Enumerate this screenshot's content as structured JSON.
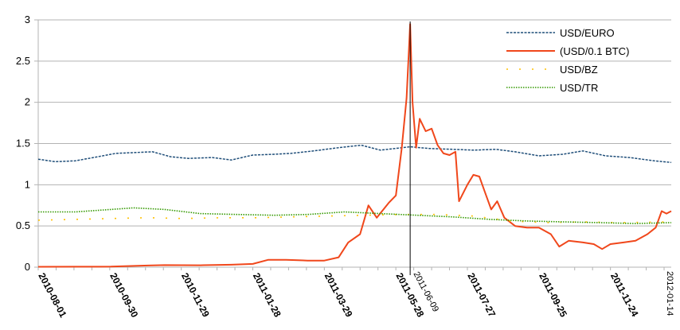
{
  "chart_data": {
    "type": "line",
    "title": "",
    "xlabel": "",
    "ylabel": "",
    "ylim": [
      0,
      3
    ],
    "yticks": [
      "0",
      "0.5",
      "1",
      "1.5",
      "2",
      "2.5",
      "3"
    ],
    "grid": "horizontal",
    "legend_position": "top-right",
    "xlim": [
      "2010-08-01",
      "2012-01-14"
    ],
    "xticks": [
      "2010-08-01",
      "2010-09-30",
      "2010-11-29",
      "2011-01-28",
      "2011-03-29",
      "2011-05-28",
      "2011-07-27",
      "2011-09-25",
      "2011-11-24"
    ],
    "end_label": "2012-01-14",
    "annotation": {
      "date": "2011-06-09",
      "label": "2011-06-09"
    },
    "series": [
      {
        "name": "USD/EURO",
        "color": "#1f4e79",
        "style": "dashed",
        "points": [
          [
            "2010-08-01",
            1.31
          ],
          [
            "2010-08-15",
            1.28
          ],
          [
            "2010-09-01",
            1.29
          ],
          [
            "2010-09-20",
            1.34
          ],
          [
            "2010-10-05",
            1.38
          ],
          [
            "2010-10-20",
            1.39
          ],
          [
            "2010-11-05",
            1.4
          ],
          [
            "2010-11-20",
            1.34
          ],
          [
            "2010-12-05",
            1.32
          ],
          [
            "2010-12-25",
            1.33
          ],
          [
            "2011-01-10",
            1.3
          ],
          [
            "2011-01-28",
            1.36
          ],
          [
            "2011-02-15",
            1.37
          ],
          [
            "2011-03-01",
            1.38
          ],
          [
            "2011-03-20",
            1.41
          ],
          [
            "2011-04-10",
            1.45
          ],
          [
            "2011-04-29",
            1.48
          ],
          [
            "2011-05-15",
            1.42
          ],
          [
            "2011-06-09",
            1.46
          ],
          [
            "2011-06-25",
            1.44
          ],
          [
            "2011-07-15",
            1.43
          ],
          [
            "2011-08-01",
            1.42
          ],
          [
            "2011-08-20",
            1.43
          ],
          [
            "2011-09-05",
            1.4
          ],
          [
            "2011-09-25",
            1.35
          ],
          [
            "2011-10-15",
            1.37
          ],
          [
            "2011-11-01",
            1.41
          ],
          [
            "2011-11-20",
            1.35
          ],
          [
            "2011-12-10",
            1.33
          ],
          [
            "2011-12-31",
            1.29
          ],
          [
            "2012-01-14",
            1.27
          ]
        ]
      },
      {
        "name": "(USD/0.1 BTC)",
        "color": "#f0471b",
        "style": "solid",
        "points": [
          [
            "2010-08-01",
            0.005
          ],
          [
            "2010-09-01",
            0.006
          ],
          [
            "2010-10-01",
            0.007
          ],
          [
            "2010-11-01",
            0.02
          ],
          [
            "2010-11-15",
            0.025
          ],
          [
            "2010-12-15",
            0.023
          ],
          [
            "2011-01-10",
            0.03
          ],
          [
            "2011-01-28",
            0.04
          ],
          [
            "2011-02-10",
            0.09
          ],
          [
            "2011-02-25",
            0.09
          ],
          [
            "2011-03-15",
            0.08
          ],
          [
            "2011-03-29",
            0.08
          ],
          [
            "2011-04-10",
            0.12
          ],
          [
            "2011-04-18",
            0.3
          ],
          [
            "2011-04-28",
            0.4
          ],
          [
            "2011-05-05",
            0.75
          ],
          [
            "2011-05-12",
            0.6
          ],
          [
            "2011-05-22",
            0.78
          ],
          [
            "2011-05-28",
            0.87
          ],
          [
            "2011-06-02",
            1.45
          ],
          [
            "2011-06-06",
            2.05
          ],
          [
            "2011-06-09",
            2.95
          ],
          [
            "2011-06-11",
            2.0
          ],
          [
            "2011-06-14",
            1.45
          ],
          [
            "2011-06-17",
            1.8
          ],
          [
            "2011-06-22",
            1.65
          ],
          [
            "2011-06-27",
            1.68
          ],
          [
            "2011-07-02",
            1.48
          ],
          [
            "2011-07-07",
            1.38
          ],
          [
            "2011-07-12",
            1.36
          ],
          [
            "2011-07-17",
            1.4
          ],
          [
            "2011-07-20",
            0.8
          ],
          [
            "2011-07-27",
            1.0
          ],
          [
            "2011-08-01",
            1.12
          ],
          [
            "2011-08-06",
            1.1
          ],
          [
            "2011-08-11",
            0.9
          ],
          [
            "2011-08-16",
            0.7
          ],
          [
            "2011-08-21",
            0.8
          ],
          [
            "2011-08-27",
            0.6
          ],
          [
            "2011-09-05",
            0.5
          ],
          [
            "2011-09-15",
            0.48
          ],
          [
            "2011-09-25",
            0.48
          ],
          [
            "2011-10-05",
            0.4
          ],
          [
            "2011-10-12",
            0.25
          ],
          [
            "2011-10-20",
            0.32
          ],
          [
            "2011-11-01",
            0.3
          ],
          [
            "2011-11-10",
            0.28
          ],
          [
            "2011-11-17",
            0.22
          ],
          [
            "2011-11-24",
            0.28
          ],
          [
            "2011-12-05",
            0.3
          ],
          [
            "2011-12-15",
            0.32
          ],
          [
            "2011-12-25",
            0.4
          ],
          [
            "2012-01-01",
            0.48
          ],
          [
            "2012-01-06",
            0.68
          ],
          [
            "2012-01-10",
            0.65
          ],
          [
            "2012-01-14",
            0.68
          ]
        ]
      },
      {
        "name": "USD/BZ",
        "color": "#ffc000",
        "style": "dotted",
        "points": [
          [
            "2010-08-01",
            0.57
          ],
          [
            "2010-09-01",
            0.58
          ],
          [
            "2010-10-01",
            0.59
          ],
          [
            "2010-11-01",
            0.6
          ],
          [
            "2010-12-01",
            0.59
          ],
          [
            "2011-01-01",
            0.6
          ],
          [
            "2011-02-01",
            0.6
          ],
          [
            "2011-03-01",
            0.61
          ],
          [
            "2011-04-01",
            0.62
          ],
          [
            "2011-05-01",
            0.63
          ],
          [
            "2011-06-01",
            0.64
          ],
          [
            "2011-07-01",
            0.64
          ],
          [
            "2011-08-01",
            0.62
          ],
          [
            "2011-09-01",
            0.56
          ],
          [
            "2011-10-01",
            0.54
          ],
          [
            "2011-11-01",
            0.55
          ],
          [
            "2011-12-01",
            0.54
          ],
          [
            "2012-01-14",
            0.55
          ]
        ]
      },
      {
        "name": "USD/TR",
        "color": "#339900",
        "style": "dotted",
        "points": [
          [
            "2010-08-01",
            0.67
          ],
          [
            "2010-09-01",
            0.67
          ],
          [
            "2010-10-01",
            0.7
          ],
          [
            "2010-10-20",
            0.72
          ],
          [
            "2010-11-15",
            0.7
          ],
          [
            "2010-12-15",
            0.65
          ],
          [
            "2011-01-15",
            0.64
          ],
          [
            "2011-02-15",
            0.63
          ],
          [
            "2011-03-15",
            0.64
          ],
          [
            "2011-04-15",
            0.67
          ],
          [
            "2011-05-15",
            0.65
          ],
          [
            "2011-06-15",
            0.63
          ],
          [
            "2011-07-15",
            0.61
          ],
          [
            "2011-08-15",
            0.58
          ],
          [
            "2011-09-15",
            0.56
          ],
          [
            "2011-10-15",
            0.55
          ],
          [
            "2011-11-15",
            0.54
          ],
          [
            "2011-12-15",
            0.53
          ],
          [
            "2012-01-14",
            0.54
          ]
        ]
      }
    ]
  }
}
